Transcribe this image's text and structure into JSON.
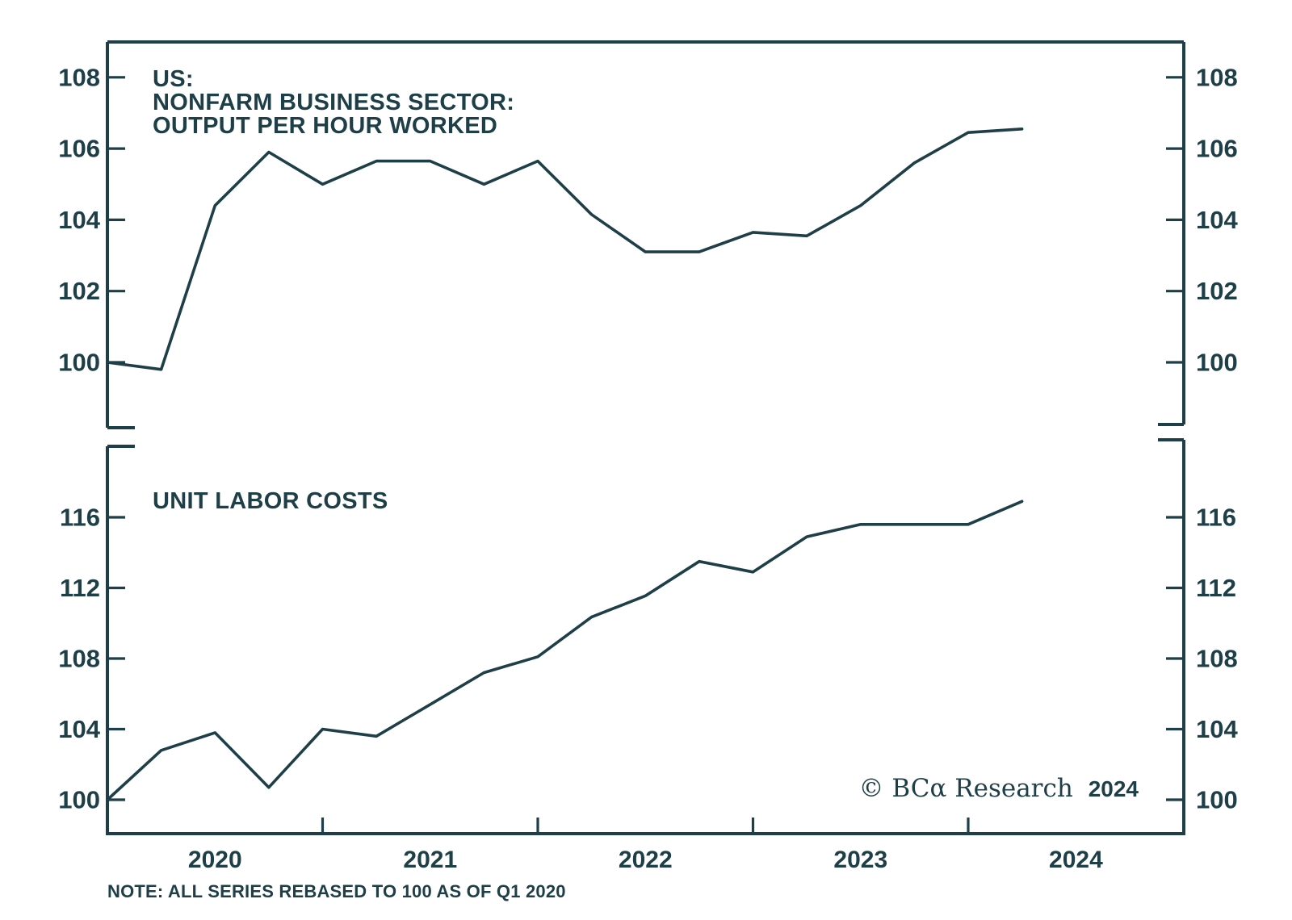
{
  "figure": {
    "background_color": "#ffffff",
    "ink_color": "#1e3f47",
    "note": "NOTE: ALL SERIES REBASED TO 100 AS OF Q1 2020",
    "copyright_prefix": "© BCα Research",
    "copyright_year": "2024",
    "x_axis": {
      "year_labels": [
        "2020",
        "2021",
        "2022",
        "2023",
        "2024"
      ]
    }
  },
  "chart_data": [
    {
      "type": "line",
      "title": "US: NONFARM BUSINESS SECTOR: OUTPUT PER HOUR WORKED",
      "title_lines": [
        "US:",
        "NONFARM BUSINESS SECTOR:",
        "OUTPUT PER HOUR WORKED"
      ],
      "x": [
        "Q1 2020",
        "Q2 2020",
        "Q3 2020",
        "Q4 2020",
        "Q1 2021",
        "Q2 2021",
        "Q3 2021",
        "Q4 2021",
        "Q1 2022",
        "Q2 2022",
        "Q3 2022",
        "Q4 2022",
        "Q1 2023",
        "Q2 2023",
        "Q3 2023",
        "Q4 2023",
        "Q1 2024",
        "Q2 2024"
      ],
      "values": [
        100.0,
        99.8,
        104.4,
        105.9,
        105.0,
        105.65,
        105.65,
        105.0,
        105.65,
        104.15,
        103.1,
        103.1,
        103.65,
        103.55,
        104.4,
        105.6,
        106.45,
        106.55
      ],
      "y_ticks": [
        100,
        102,
        104,
        106,
        108
      ],
      "ylim": [
        98.1,
        109.0
      ],
      "grid": false,
      "legend": null
    },
    {
      "type": "line",
      "title": "UNIT LABOR COSTS",
      "title_lines": [
        "UNIT LABOR COSTS"
      ],
      "x": [
        "Q1 2020",
        "Q2 2020",
        "Q3 2020",
        "Q4 2020",
        "Q1 2021",
        "Q2 2021",
        "Q3 2021",
        "Q4 2021",
        "Q1 2022",
        "Q2 2022",
        "Q3 2022",
        "Q4 2022",
        "Q1 2023",
        "Q2 2023",
        "Q3 2023",
        "Q4 2023",
        "Q1 2024",
        "Q2 2024"
      ],
      "values": [
        100.0,
        102.8,
        103.8,
        100.7,
        104.0,
        103.6,
        105.4,
        107.2,
        108.1,
        110.35,
        111.55,
        113.5,
        112.9,
        114.9,
        115.6,
        115.6,
        115.6,
        116.9
      ],
      "y_ticks": [
        100,
        104,
        108,
        112,
        116
      ],
      "ylim": [
        98.1,
        120.0
      ],
      "grid": false,
      "legend": null
    }
  ]
}
